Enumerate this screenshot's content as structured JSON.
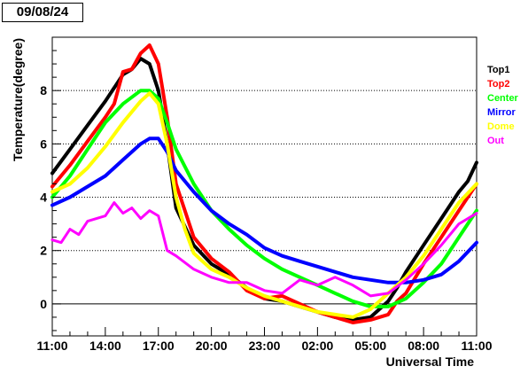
{
  "date_label": "09/08/24",
  "chart_data": {
    "type": "line",
    "title": "",
    "xlabel": "Universal Time",
    "ylabel": "Temperature(degree)",
    "x_unit": "hours after 11:00",
    "xlim": [
      0,
      24
    ],
    "ylim": [
      -1.2,
      10.0
    ],
    "x_ticks": [
      0,
      3,
      6,
      9,
      12,
      15,
      18,
      21,
      24
    ],
    "x_tick_labels": [
      "11:00",
      "14:00",
      "17:00",
      "20:00",
      "23:00",
      "02:00",
      "05:00",
      "08:00",
      "11:00"
    ],
    "y_ticks": [
      0,
      2,
      4,
      6,
      8
    ],
    "y_tick_labels": [
      "0",
      "2",
      "4",
      "6",
      "8"
    ],
    "gridlines_y": [
      2,
      4,
      6,
      8
    ],
    "zero_line": true,
    "legend_position": "right",
    "series": [
      {
        "name": "Top1",
        "color": "#000000",
        "x": [
          0,
          1,
          2,
          3,
          4,
          4.5,
          5,
          5.5,
          6,
          6.5,
          7,
          8,
          9,
          10,
          11,
          12,
          13,
          14,
          15,
          16,
          17,
          18,
          19,
          19.5,
          20,
          21,
          22,
          23,
          23.5,
          24
        ],
        "y": [
          4.9,
          5.8,
          6.7,
          7.6,
          8.6,
          8.8,
          9.2,
          9.0,
          8.0,
          6.0,
          3.6,
          2.2,
          1.5,
          1.1,
          0.6,
          0.2,
          0.1,
          -0.1,
          -0.3,
          -0.5,
          -0.6,
          -0.5,
          0.1,
          0.6,
          1.2,
          2.2,
          3.2,
          4.2,
          4.6,
          5.3
        ]
      },
      {
        "name": "Top2",
        "color": "#ff0000",
        "x": [
          0,
          1,
          2,
          3,
          3.5,
          4,
          4.5,
          5,
          5.5,
          6,
          6.5,
          7,
          8,
          9,
          10,
          11,
          12,
          13,
          14,
          15,
          16,
          17,
          18,
          19,
          19.5,
          20,
          21,
          22,
          23,
          24
        ],
        "y": [
          4.4,
          5.2,
          6.1,
          7.0,
          7.5,
          8.7,
          8.8,
          9.4,
          9.7,
          9.0,
          7.0,
          4.5,
          2.5,
          1.7,
          1.2,
          0.5,
          0.2,
          0.3,
          0.0,
          -0.3,
          -0.5,
          -0.7,
          -0.6,
          -0.4,
          0.1,
          0.4,
          1.5,
          2.5,
          3.5,
          4.5
        ]
      },
      {
        "name": "Center",
        "color": "#00ff00",
        "x": [
          0,
          1,
          2,
          3,
          4,
          5,
          5.5,
          6,
          6.5,
          7,
          8,
          9,
          10,
          11,
          12,
          13,
          14,
          15,
          16,
          17,
          18,
          19,
          20,
          21,
          22,
          23,
          24
        ],
        "y": [
          4.0,
          4.8,
          5.8,
          6.8,
          7.5,
          8.0,
          8.0,
          7.7,
          6.8,
          5.8,
          4.5,
          3.5,
          2.8,
          2.2,
          1.7,
          1.3,
          1.0,
          0.7,
          0.4,
          0.1,
          -0.1,
          -0.1,
          0.2,
          0.8,
          1.5,
          2.5,
          3.5
        ]
      },
      {
        "name": "Mirror",
        "color": "#0000ff",
        "x": [
          0,
          1,
          2,
          3,
          4,
          5,
          5.5,
          6,
          6.5,
          7,
          8,
          9,
          10,
          11,
          12,
          13,
          14,
          15,
          16,
          17,
          18,
          19,
          20,
          21,
          22,
          23,
          24
        ],
        "y": [
          3.7,
          4.0,
          4.4,
          4.8,
          5.4,
          6.0,
          6.2,
          6.2,
          5.7,
          5.0,
          4.2,
          3.5,
          3.0,
          2.6,
          2.1,
          1.8,
          1.6,
          1.4,
          1.2,
          1.0,
          0.9,
          0.8,
          0.8,
          0.9,
          1.1,
          1.6,
          2.3
        ]
      },
      {
        "name": "Dome",
        "color": "#ffff00",
        "x": [
          0,
          1,
          2,
          3,
          4,
          5,
          5.5,
          6,
          6.5,
          7,
          7.5,
          8,
          8.5,
          9,
          10,
          11,
          12,
          13,
          14,
          15,
          16,
          17,
          18,
          19,
          20,
          21,
          22,
          23,
          24
        ],
        "y": [
          4.2,
          4.5,
          5.1,
          5.9,
          6.8,
          7.6,
          7.9,
          7.5,
          6.0,
          4.0,
          2.8,
          1.9,
          1.6,
          1.3,
          1.0,
          0.6,
          0.3,
          0.1,
          -0.1,
          -0.3,
          -0.4,
          -0.5,
          -0.2,
          0.4,
          1.0,
          1.8,
          2.8,
          3.8,
          4.5
        ]
      },
      {
        "name": "Out",
        "color": "#ff00ff",
        "x": [
          0,
          0.5,
          1,
          1.5,
          2,
          3,
          3.5,
          4,
          4.5,
          5,
          5.5,
          6,
          6.5,
          7,
          8,
          9,
          10,
          11,
          12,
          13,
          14,
          15,
          16,
          17,
          17.5,
          18,
          19,
          20,
          21,
          22,
          23,
          24
        ],
        "y": [
          2.4,
          2.3,
          2.8,
          2.6,
          3.1,
          3.3,
          3.8,
          3.4,
          3.6,
          3.2,
          3.5,
          3.3,
          2.0,
          1.8,
          1.3,
          1.0,
          0.8,
          0.8,
          0.5,
          0.4,
          0.9,
          0.7,
          1.0,
          0.7,
          0.5,
          0.3,
          0.4,
          0.9,
          1.5,
          2.2,
          3.0,
          3.4
        ]
      }
    ]
  }
}
